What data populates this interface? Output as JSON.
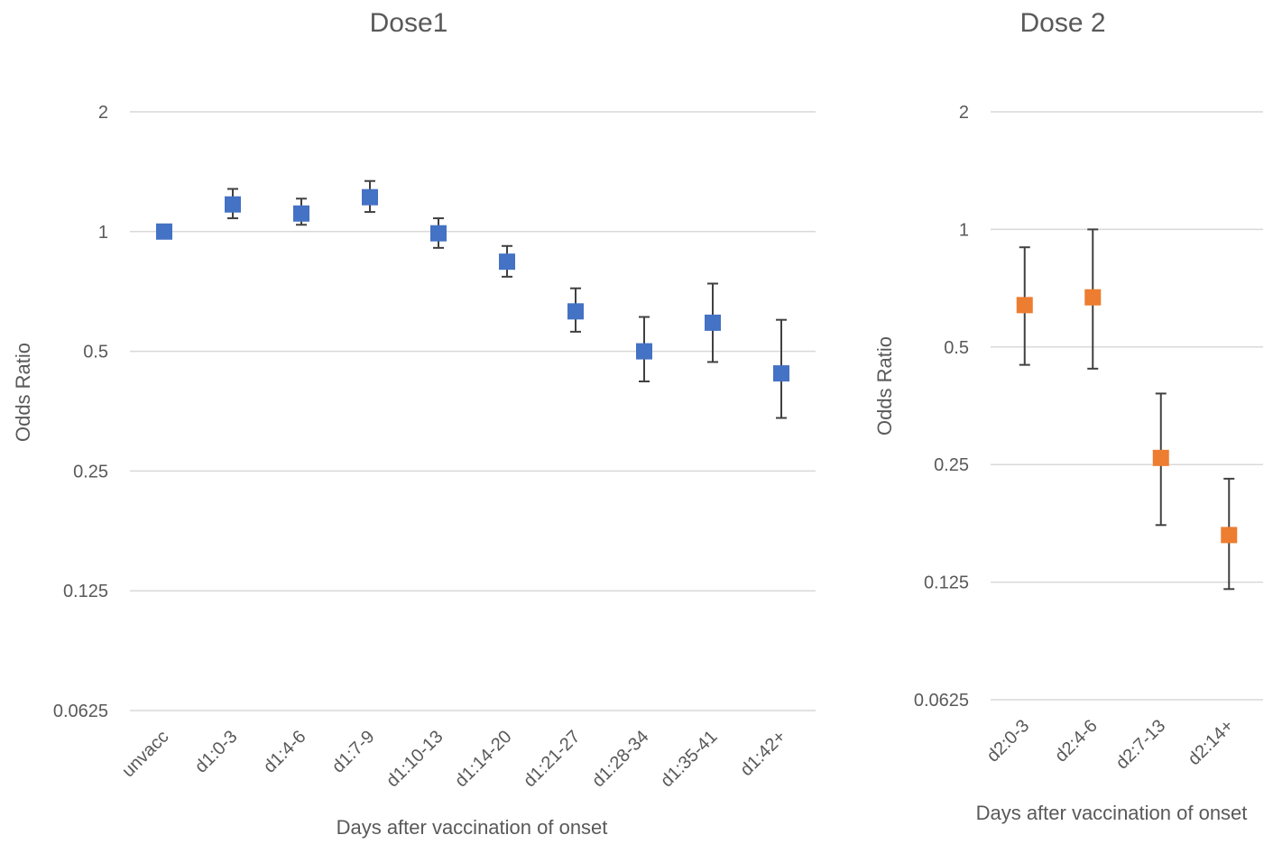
{
  "chart_data": [
    {
      "type": "scatter",
      "title": "Dose1",
      "xlabel": "Days after vaccination of onset",
      "ylabel": "Odds Ratio",
      "yscale": "log2",
      "ylim": [
        0.0625,
        2
      ],
      "yticks": [
        2,
        1,
        0.5,
        0.25,
        0.125,
        0.0625
      ],
      "grid": true,
      "marker_color": "#4472c4",
      "categories": [
        "unvacc",
        "d1:0-3",
        "d1:4-6",
        "d1:7-9",
        "d1:10-13",
        "d1:14-20",
        "d1:21-27",
        "d1:28-34",
        "d1:35-41",
        "d1:42+"
      ],
      "values": [
        1.0,
        1.17,
        1.11,
        1.22,
        0.99,
        0.84,
        0.63,
        0.5,
        0.59,
        0.44
      ],
      "lower": [
        1.0,
        1.08,
        1.04,
        1.12,
        0.91,
        0.77,
        0.56,
        0.42,
        0.47,
        0.34
      ],
      "upper": [
        1.0,
        1.28,
        1.21,
        1.34,
        1.08,
        0.92,
        0.72,
        0.61,
        0.74,
        0.6
      ]
    },
    {
      "type": "scatter",
      "title": "Dose 2",
      "xlabel": "Days after vaccination of onset",
      "ylabel": "Odds Ratio",
      "yscale": "log2",
      "ylim": [
        0.0625,
        2
      ],
      "yticks": [
        2,
        1,
        0.5,
        0.25,
        0.125,
        0.0625
      ],
      "grid": true,
      "marker_color": "#ed7d31",
      "categories": [
        "d2:0-3",
        "d2:4-6",
        "d2:7-13",
        "d2:14+"
      ],
      "values": [
        0.64,
        0.67,
        0.26,
        0.165
      ],
      "lower": [
        0.45,
        0.44,
        0.175,
        0.12
      ],
      "upper": [
        0.9,
        1.0,
        0.38,
        0.23
      ]
    }
  ]
}
